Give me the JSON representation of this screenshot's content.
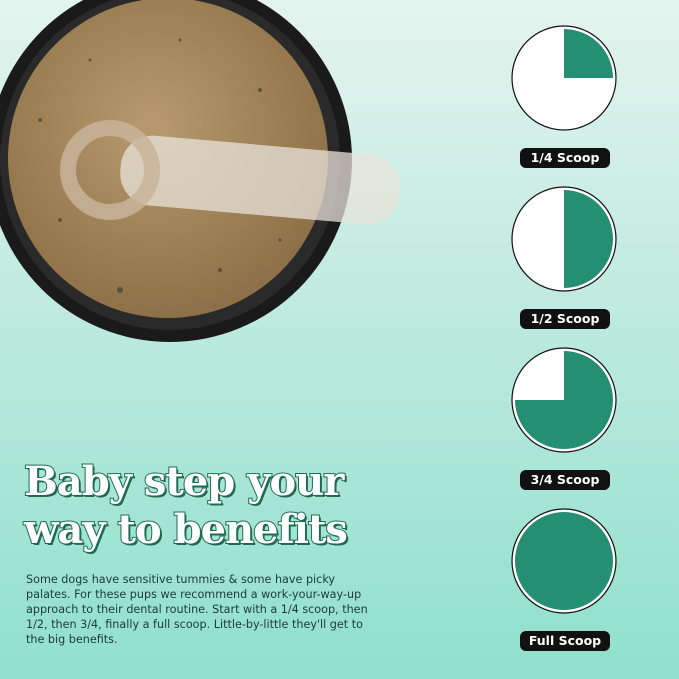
{
  "headline": {
    "line1": "Baby step your",
    "line2": "way to benefits"
  },
  "body": "Some dogs have sensitive tummies & some have picky palates. For these pups we recommend a work-your-way-up approach to their dental routine. Start with a 1/4 scoop, then 1/2, then 3/4, finally a full scoop. Little-by-little they'll get to the big benefits.",
  "scoops": [
    {
      "label": "1/4 Scoop",
      "fraction": 0.25
    },
    {
      "label": "1/2 Scoop",
      "fraction": 0.5
    },
    {
      "label": "3/4 Scoop",
      "fraction": 0.75
    },
    {
      "label": "Full Scoop",
      "fraction": 1
    }
  ],
  "colors": {
    "fill": "#248f73",
    "label_bg": "#111111"
  }
}
